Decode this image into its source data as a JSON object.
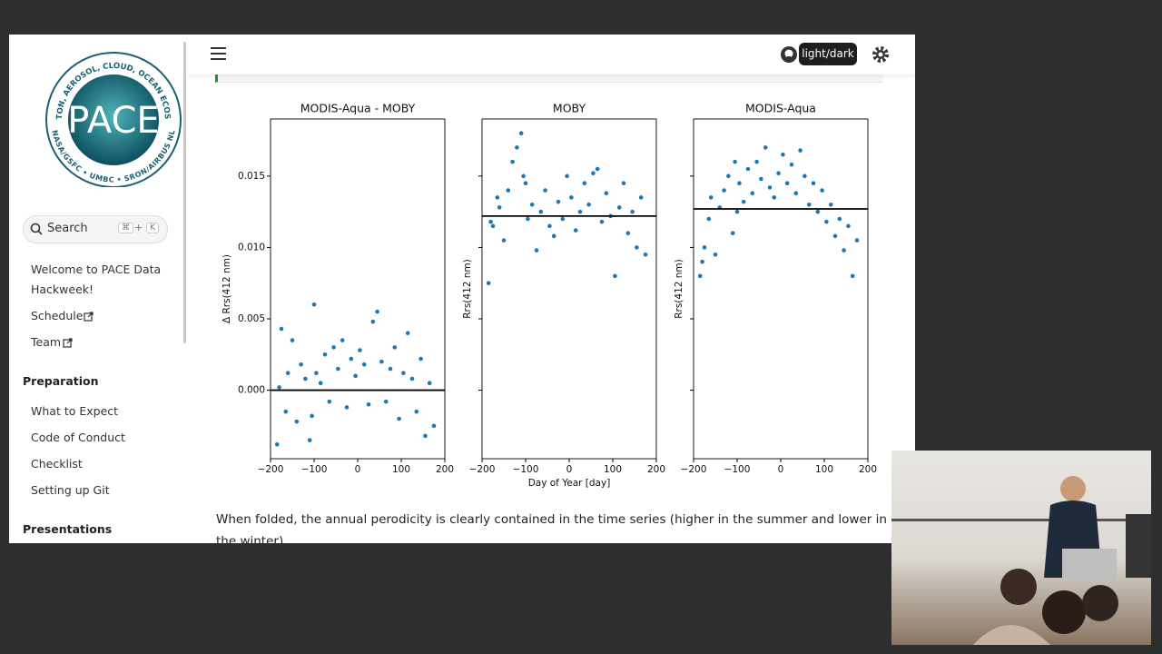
{
  "sidebar": {
    "logo": {
      "title": "PACE",
      "ring_top": "PLANKTON, AEROSOL, CLOUD, OCEAN ECOSYSTEM",
      "ring_bottom": "NASA/GSFC • UMBC • SRON/AIRBUS NL"
    },
    "search": {
      "placeholder": "Search",
      "keys": [
        "⌘",
        "+",
        "K"
      ]
    },
    "nav_top": [
      "Welcome to PACE Data Hackweek!",
      "Schedule",
      "Team"
    ],
    "nav_sections": [
      {
        "title": "Preparation",
        "links": [
          "What to Expect",
          "Code of Conduct",
          "Checklist",
          "Setting up Git"
        ]
      },
      {
        "title": "Presentations"
      }
    ]
  },
  "header": {
    "tooltip": "light/dark"
  },
  "body_text": "When folded, the annual perodicity is clearly contained in the time series (higher in the summer and lower in the winter)",
  "chart_data": [
    {
      "type": "scatter",
      "title": "MODIS-Aqua - MOBY",
      "ylabel": "Δ Rrs(412 nm)",
      "color": "#1f77b4",
      "x": [
        -185,
        -175,
        -165,
        -160,
        -150,
        -140,
        -130,
        -120,
        -110,
        -100,
        -95,
        -85,
        -75,
        -65,
        -55,
        -45,
        -35,
        -25,
        -15,
        -5,
        5,
        15,
        25,
        35,
        45,
        55,
        65,
        75,
        85,
        95,
        105,
        115,
        125,
        135,
        145,
        155,
        165,
        175,
        -180,
        -105
      ],
      "values": [
        -0.0038,
        0.0043,
        -0.0015,
        0.0012,
        0.0035,
        -0.0022,
        0.0018,
        0.0008,
        -0.0035,
        0.006,
        0.0012,
        0.0005,
        0.0025,
        -0.0008,
        0.003,
        0.0015,
        0.0035,
        -0.0012,
        0.0022,
        0.001,
        0.0028,
        0.0018,
        -0.001,
        0.0048,
        0.0055,
        0.002,
        -0.0008,
        0.0015,
        0.003,
        -0.002,
        0.0012,
        0.004,
        0.0008,
        -0.0015,
        0.0022,
        -0.0032,
        0.0005,
        -0.0025,
        0.0002,
        -0.0018
      ],
      "hline": 0,
      "hline_color": "#000000",
      "xlim": [
        -200,
        200
      ],
      "xticks": [
        {
          "value": -200,
          "label": "−200"
        },
        {
          "value": -100,
          "label": "−100"
        },
        0,
        100,
        200
      ],
      "ylim": [
        -0.0048,
        0.019
      ],
      "yticks": [
        {
          "value": 0,
          "label": "0.000"
        },
        0.005,
        {
          "value": 0.01,
          "label": "0.010"
        },
        0.015
      ],
      "ytick_labels": true
    },
    {
      "type": "scatter",
      "title": "MOBY",
      "ylabel": "Rrs(412 nm)",
      "xlabel": "Day of Year [day]",
      "color": "#1f77b4",
      "x": [
        -185,
        -175,
        -165,
        -160,
        -150,
        -140,
        -130,
        -120,
        -110,
        -100,
        -95,
        -85,
        -75,
        -65,
        -55,
        -45,
        -35,
        -25,
        -15,
        -5,
        5,
        15,
        25,
        35,
        45,
        55,
        65,
        75,
        85,
        95,
        105,
        115,
        125,
        135,
        145,
        155,
        165,
        175,
        -180,
        -105
      ],
      "values": [
        0.0075,
        0.0115,
        0.0135,
        0.0128,
        0.0105,
        0.014,
        0.016,
        0.017,
        0.018,
        0.0145,
        0.012,
        0.013,
        0.0098,
        0.0125,
        0.014,
        0.0115,
        0.0108,
        0.0132,
        0.012,
        0.015,
        0.0135,
        0.0112,
        0.0125,
        0.0145,
        0.013,
        0.0152,
        0.0155,
        0.0118,
        0.0138,
        0.0122,
        0.008,
        0.0128,
        0.0145,
        0.011,
        0.0125,
        0.01,
        0.0135,
        0.0095,
        0.0118,
        0.015
      ],
      "hline": 0.0122,
      "hline_color": "#000000",
      "xlim": [
        -200,
        200
      ],
      "xticks": [
        {
          "value": -200,
          "label": "−200"
        },
        {
          "value": -100,
          "label": "−100"
        },
        0,
        100,
        200
      ],
      "ylim": [
        -0.0048,
        0.019
      ],
      "yticks": [
        0,
        0.005,
        0.01,
        0.015
      ],
      "ytick_labels": false
    },
    {
      "type": "scatter",
      "title": "MODIS-Aqua",
      "ylabel": "Rrs(412 nm)",
      "color": "#1f77b4",
      "x": [
        -185,
        -175,
        -165,
        -160,
        -150,
        -140,
        -130,
        -120,
        -110,
        -100,
        -95,
        -85,
        -75,
        -65,
        -55,
        -45,
        -35,
        -25,
        -15,
        -5,
        5,
        15,
        25,
        35,
        45,
        55,
        65,
        75,
        85,
        95,
        105,
        115,
        125,
        135,
        145,
        155,
        165,
        175,
        -180,
        -105
      ],
      "values": [
        0.008,
        0.01,
        0.012,
        0.0135,
        0.0095,
        0.0128,
        0.014,
        0.015,
        0.011,
        0.0125,
        0.0145,
        0.0132,
        0.0155,
        0.0138,
        0.016,
        0.0148,
        0.017,
        0.0142,
        0.0135,
        0.0152,
        0.0165,
        0.0145,
        0.0158,
        0.0138,
        0.0168,
        0.015,
        0.013,
        0.0145,
        0.0125,
        0.014,
        0.0118,
        0.013,
        0.0108,
        0.012,
        0.0098,
        0.0115,
        0.008,
        0.0105,
        0.009,
        0.016
      ],
      "hline": 0.0127,
      "hline_color": "#000000",
      "xlim": [
        -200,
        200
      ],
      "xticks": [
        {
          "value": -200,
          "label": "−200"
        },
        {
          "value": -100,
          "label": "−100"
        },
        0,
        100,
        200
      ],
      "ylim": [
        -0.0048,
        0.019
      ],
      "yticks": [
        0,
        0.005,
        0.01,
        0.015
      ],
      "ytick_labels": false
    }
  ]
}
